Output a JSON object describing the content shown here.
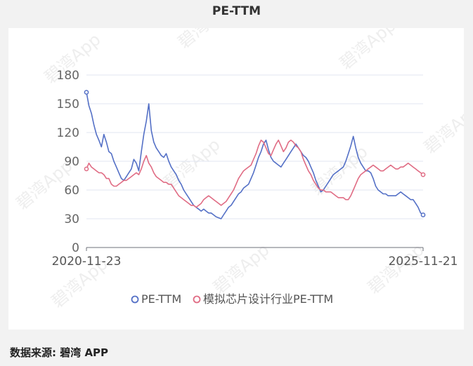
{
  "title": "PE-TTM",
  "source": "数据来源: 碧湾 APP",
  "watermark": "碧湾App",
  "chart_data": {
    "type": "line",
    "y_ticks": [
      0,
      30,
      60,
      90,
      120,
      150,
      180
    ],
    "ylim": [
      0,
      180
    ],
    "x_labels": [
      "2020-11-23",
      "2025-11-21"
    ],
    "grid": true,
    "legend_position": "bottom",
    "series": [
      {
        "name": "PE-TTM",
        "color": "#5470c6",
        "values": [
          162,
          148,
          140,
          128,
          118,
          112,
          105,
          118,
          110,
          100,
          98,
          90,
          84,
          78,
          72,
          70,
          74,
          78,
          82,
          92,
          88,
          80,
          100,
          118,
          132,
          150,
          122,
          110,
          104,
          100,
          96,
          94,
          98,
          90,
          84,
          80,
          76,
          70,
          66,
          60,
          56,
          52,
          48,
          44,
          42,
          40,
          38,
          40,
          38,
          36,
          36,
          34,
          32,
          31,
          30,
          34,
          38,
          42,
          44,
          48,
          52,
          56,
          58,
          62,
          64,
          66,
          72,
          78,
          86,
          94,
          100,
          108,
          112,
          102,
          94,
          90,
          88,
          86,
          84,
          88,
          92,
          96,
          100,
          104,
          108,
          104,
          100,
          96,
          94,
          90,
          84,
          78,
          70,
          64,
          58,
          60,
          64,
          68,
          72,
          76,
          78,
          80,
          82,
          84,
          90,
          98,
          106,
          116,
          104,
          94,
          88,
          84,
          80,
          80,
          78,
          72,
          64,
          60,
          58,
          56,
          56,
          54,
          54,
          54,
          54,
          56,
          58,
          56,
          54,
          52,
          50,
          50,
          46,
          42,
          36,
          34
        ]
      },
      {
        "name": "模拟芯片设计行业PE-TTM",
        "color": "#e06c84",
        "values": [
          82,
          88,
          84,
          82,
          80,
          78,
          78,
          76,
          72,
          72,
          66,
          64,
          64,
          66,
          68,
          70,
          70,
          72,
          74,
          76,
          78,
          76,
          82,
          90,
          96,
          88,
          84,
          78,
          74,
          72,
          70,
          68,
          68,
          66,
          66,
          62,
          58,
          54,
          52,
          50,
          48,
          46,
          44,
          44,
          42,
          44,
          46,
          50,
          52,
          54,
          52,
          50,
          48,
          46,
          44,
          46,
          48,
          52,
          56,
          60,
          66,
          72,
          76,
          80,
          82,
          84,
          86,
          92,
          98,
          106,
          112,
          110,
          104,
          98,
          96,
          102,
          108,
          112,
          106,
          100,
          104,
          110,
          112,
          110,
          106,
          104,
          100,
          92,
          86,
          80,
          76,
          70,
          66,
          62,
          60,
          60,
          58,
          58,
          58,
          56,
          54,
          52,
          52,
          52,
          50,
          50,
          54,
          60,
          66,
          72,
          76,
          78,
          80,
          82,
          84,
          86,
          84,
          82,
          80,
          80,
          82,
          84,
          86,
          84,
          82,
          82,
          84,
          84,
          86,
          88,
          86,
          84,
          82,
          80,
          78,
          76
        ]
      }
    ]
  }
}
